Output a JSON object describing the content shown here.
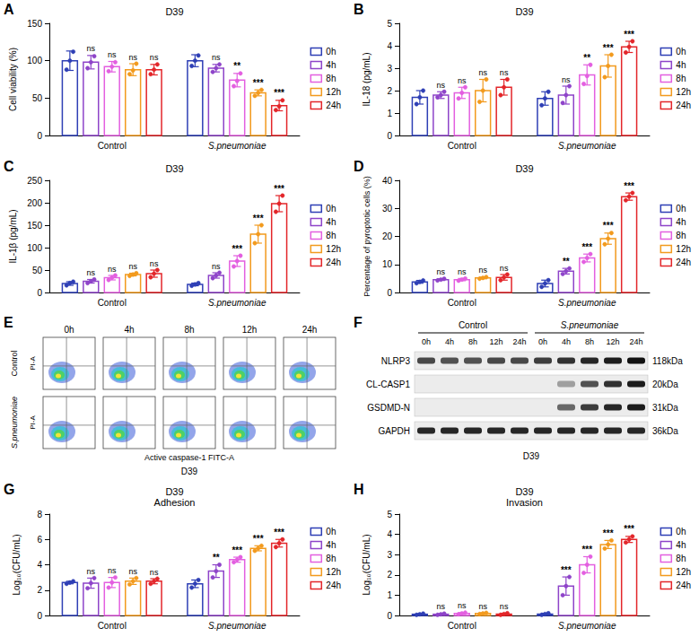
{
  "chart_data": [
    {
      "type": "bar",
      "panel": "A",
      "title": "D39",
      "y_label": "Cell viability (%)",
      "categories": [
        "Control",
        "S.pneumoniae"
      ],
      "ylim": [
        0,
        150
      ],
      "yticks": [
        0,
        50,
        100,
        150
      ],
      "grid": false,
      "legend": "right",
      "series": [
        {
          "name": "0h",
          "color": "#2e3fb5",
          "values": [
            100,
            100
          ],
          "errors": [
            13,
            8
          ],
          "points": [
            [
              88,
              100,
              112
            ],
            [
              93,
              100,
              107
            ]
          ],
          "significance": [
            null,
            null
          ]
        },
        {
          "name": "4h",
          "color": "#8e44c9",
          "values": [
            98,
            90
          ],
          "errors": [
            9,
            5
          ],
          "points": [
            [
              90,
              98,
              106
            ],
            [
              85,
              90,
              95
            ]
          ],
          "significance": [
            "ns",
            "ns"
          ]
        },
        {
          "name": "8h",
          "color": "#e35fe0",
          "values": [
            92,
            74
          ],
          "errors": [
            7,
            9
          ],
          "points": [
            [
              86,
              92,
              98
            ],
            [
              66,
              73,
              83
            ]
          ],
          "significance": [
            "ns",
            "**"
          ]
        },
        {
          "name": "12h",
          "color": "#f29a1e",
          "values": [
            88,
            57
          ],
          "errors": [
            8,
            4
          ],
          "points": [
            [
              82,
              87,
              96
            ],
            [
              53,
              57,
              61
            ]
          ],
          "significance": [
            "ns",
            "***"
          ]
        },
        {
          "name": "24h",
          "color": "#e3262a",
          "values": [
            88,
            40
          ],
          "errors": [
            7,
            7
          ],
          "points": [
            [
              82,
              88,
              95
            ],
            [
              34,
              39,
              47
            ]
          ],
          "significance": [
            "ns",
            "***"
          ]
        }
      ]
    },
    {
      "type": "bar",
      "panel": "B",
      "title": "D39",
      "y_label": "IL-18 (pg/mL)",
      "categories": [
        "Control",
        "S.pneumoniae"
      ],
      "ylim": [
        0,
        5
      ],
      "yticks": [
        0,
        1,
        2,
        3,
        4,
        5
      ],
      "grid": false,
      "legend": "right",
      "series": [
        {
          "name": "0h",
          "color": "#2e3fb5",
          "values": [
            1.7,
            1.65
          ],
          "errors": [
            0.3,
            0.3
          ],
          "points": [
            [
              1.4,
              1.7,
              2.0
            ],
            [
              1.35,
              1.65,
              1.95
            ]
          ],
          "significance": [
            null,
            null
          ]
        },
        {
          "name": "4h",
          "color": "#8e44c9",
          "values": [
            1.8,
            1.8
          ],
          "errors": [
            0.15,
            0.4
          ],
          "points": [
            [
              1.7,
              1.8,
              1.95
            ],
            [
              1.45,
              1.8,
              2.2
            ]
          ],
          "significance": [
            "ns",
            "ns"
          ]
        },
        {
          "name": "8h",
          "color": "#e35fe0",
          "values": [
            1.9,
            2.7
          ],
          "errors": [
            0.25,
            0.45
          ],
          "points": [
            [
              1.65,
              1.9,
              2.15
            ],
            [
              2.3,
              2.65,
              3.15
            ]
          ],
          "significance": [
            "ns",
            "**"
          ]
        },
        {
          "name": "12h",
          "color": "#f29a1e",
          "values": [
            2.0,
            3.1
          ],
          "errors": [
            0.5,
            0.5
          ],
          "points": [
            [
              1.5,
              2.0,
              2.5
            ],
            [
              2.6,
              3.1,
              3.6
            ]
          ],
          "significance": [
            "ns",
            "***"
          ]
        },
        {
          "name": "24h",
          "color": "#e3262a",
          "values": [
            2.15,
            3.95
          ],
          "errors": [
            0.35,
            0.25
          ],
          "points": [
            [
              1.8,
              2.15,
              2.5
            ],
            [
              3.7,
              3.95,
              4.2
            ]
          ],
          "significance": [
            "ns",
            "***"
          ]
        }
      ]
    },
    {
      "type": "bar",
      "panel": "C",
      "title": "D39",
      "y_label": "IL-1β (pg/mL)",
      "categories": [
        "Control",
        "S.pneumoniae"
      ],
      "ylim": [
        0,
        250
      ],
      "yticks": [
        0,
        50,
        100,
        150,
        200,
        250
      ],
      "grid": false,
      "legend": "right",
      "series": [
        {
          "name": "0h",
          "color": "#2e3fb5",
          "values": [
            20,
            18
          ],
          "errors": [
            4,
            3
          ],
          "points": [
            [
              16,
              21,
              24
            ],
            [
              15,
              18,
              21
            ]
          ],
          "significance": [
            null,
            null
          ]
        },
        {
          "name": "4h",
          "color": "#8e44c9",
          "values": [
            25,
            38
          ],
          "errors": [
            4,
            6
          ],
          "points": [
            [
              21,
              25,
              29
            ],
            [
              32,
              38,
              44
            ]
          ],
          "significance": [
            "ns",
            "ns"
          ]
        },
        {
          "name": "8h",
          "color": "#e35fe0",
          "values": [
            33,
            70
          ],
          "errors": [
            5,
            12
          ],
          "points": [
            [
              28,
              33,
              38
            ],
            [
              58,
              70,
              82
            ]
          ],
          "significance": [
            "ns",
            "***"
          ]
        },
        {
          "name": "12h",
          "color": "#f29a1e",
          "values": [
            40,
            130
          ],
          "errors": [
            3,
            20
          ],
          "points": [
            [
              37,
              40,
              43
            ],
            [
              110,
              130,
              150
            ]
          ],
          "significance": [
            "ns",
            "***"
          ]
        },
        {
          "name": "24h",
          "color": "#e3262a",
          "values": [
            42,
            198
          ],
          "errors": [
            8,
            18
          ],
          "points": [
            [
              34,
              42,
              50
            ],
            [
              180,
              198,
              216
            ]
          ],
          "significance": [
            "ns",
            "***"
          ]
        }
      ]
    },
    {
      "type": "bar",
      "panel": "D",
      "title": "D39",
      "y_label": "Percentage of pyroptotic cells (%)",
      "categories": [
        "Control",
        "S.pneumoniae"
      ],
      "ylim": [
        0,
        40
      ],
      "yticks": [
        0,
        10,
        20,
        30,
        40
      ],
      "grid": false,
      "legend": "right",
      "series": [
        {
          "name": "0h",
          "color": "#2e3fb5",
          "values": [
            3.8,
            3.2
          ],
          "errors": [
            0.5,
            1.2
          ],
          "points": [
            [
              3.3,
              3.8,
              4.3
            ],
            [
              2.0,
              3.2,
              4.4
            ]
          ],
          "significance": [
            null,
            null
          ]
        },
        {
          "name": "4h",
          "color": "#8e44c9",
          "values": [
            4.6,
            7.6
          ],
          "errors": [
            0.3,
            1.0
          ],
          "points": [
            [
              4.3,
              4.6,
              4.9
            ],
            [
              6.6,
              7.6,
              8.6
            ]
          ],
          "significance": [
            "ns",
            "**"
          ]
        },
        {
          "name": "8h",
          "color": "#e35fe0",
          "values": [
            4.6,
            12.3
          ],
          "errors": [
            0.4,
            1.4
          ],
          "points": [
            [
              4.2,
              4.6,
              5.0
            ],
            [
              10.9,
              12.3,
              13.7
            ]
          ],
          "significance": [
            "ns",
            "***"
          ]
        },
        {
          "name": "12h",
          "color": "#f29a1e",
          "values": [
            5.2,
            19.2
          ],
          "errors": [
            0.3,
            2.0
          ],
          "points": [
            [
              4.9,
              5.2,
              5.5
            ],
            [
              17.2,
              19.2,
              21.2
            ]
          ],
          "significance": [
            "ns",
            "***"
          ]
        },
        {
          "name": "24h",
          "color": "#e3262a",
          "values": [
            5.4,
            34.2
          ],
          "errors": [
            1.0,
            1.3
          ],
          "points": [
            [
              4.4,
              5.4,
              6.4
            ],
            [
              32.9,
              34.2,
              35.5
            ]
          ],
          "significance": [
            "ns",
            "***"
          ]
        }
      ]
    },
    {
      "type": "bar",
      "panel": "G",
      "title": "D39",
      "subtitle": "Adhesion",
      "y_label": "Log₁₀(CFU/mL)",
      "categories": [
        "Control",
        "S.pneumoniae"
      ],
      "ylim": [
        0,
        8
      ],
      "yticks": [
        0,
        2,
        4,
        6,
        8
      ],
      "grid": false,
      "legend": "right",
      "series": [
        {
          "name": "0h",
          "color": "#2e3fb5",
          "values": [
            2.6,
            2.5
          ],
          "errors": [
            0.1,
            0.3
          ],
          "points": [
            [
              2.5,
              2.6,
              2.7
            ],
            [
              2.2,
              2.5,
              2.8
            ]
          ],
          "significance": [
            null,
            null
          ]
        },
        {
          "name": "4h",
          "color": "#8e44c9",
          "values": [
            2.55,
            3.5
          ],
          "errors": [
            0.4,
            0.5
          ],
          "points": [
            [
              2.15,
              2.55,
              2.95
            ],
            [
              3.0,
              3.5,
              4.0
            ]
          ],
          "significance": [
            "ns",
            "**"
          ]
        },
        {
          "name": "8h",
          "color": "#e35fe0",
          "values": [
            2.6,
            4.4
          ],
          "errors": [
            0.4,
            0.2
          ],
          "points": [
            [
              2.2,
              2.6,
              3.0
            ],
            [
              4.2,
              4.4,
              4.6
            ]
          ],
          "significance": [
            "ns",
            "***"
          ]
        },
        {
          "name": "12h",
          "color": "#f29a1e",
          "values": [
            2.7,
            5.3
          ],
          "errors": [
            0.25,
            0.2
          ],
          "points": [
            [
              2.45,
              2.7,
              2.95
            ],
            [
              5.1,
              5.3,
              5.5
            ]
          ],
          "significance": [
            "ns",
            "***"
          ]
        },
        {
          "name": "24h",
          "color": "#e3262a",
          "values": [
            2.7,
            5.7
          ],
          "errors": [
            0.2,
            0.3
          ],
          "points": [
            [
              2.5,
              2.7,
              2.9
            ],
            [
              5.4,
              5.7,
              6.0
            ]
          ],
          "significance": [
            "ns",
            "***"
          ]
        }
      ]
    },
    {
      "type": "bar",
      "panel": "H",
      "title": "D39",
      "subtitle": "Invasion",
      "y_label": "Log₁₀(CFU/mL)",
      "categories": [
        "Control",
        "S.pneumoniae"
      ],
      "ylim": [
        0,
        5
      ],
      "yticks": [
        0,
        1,
        2,
        3,
        4,
        5
      ],
      "grid": false,
      "legend": "right",
      "series": [
        {
          "name": "0h",
          "color": "#2e3fb5",
          "values": [
            0.06,
            0.07
          ],
          "errors": [
            0.03,
            0.04
          ],
          "points": [
            [
              0.03,
              0.06,
              0.09
            ],
            [
              0.03,
              0.07,
              0.11
            ]
          ],
          "significance": [
            null,
            null
          ]
        },
        {
          "name": "4h",
          "color": "#8e44c9",
          "values": [
            0.06,
            1.45
          ],
          "errors": [
            0.03,
            0.45
          ],
          "points": [
            [
              0.03,
              0.06,
              0.09
            ],
            [
              1.0,
              1.45,
              1.9
            ]
          ],
          "significance": [
            "ns",
            "***"
          ]
        },
        {
          "name": "8h",
          "color": "#e35fe0",
          "values": [
            0.1,
            2.5
          ],
          "errors": [
            0.04,
            0.4
          ],
          "points": [
            [
              0.06,
              0.1,
              0.14
            ],
            [
              2.1,
              2.5,
              2.9
            ]
          ],
          "significance": [
            "ns",
            "***"
          ]
        },
        {
          "name": "12h",
          "color": "#f29a1e",
          "values": [
            0.1,
            3.5
          ],
          "errors": [
            0.03,
            0.2
          ],
          "points": [
            [
              0.07,
              0.1,
              0.13
            ],
            [
              3.3,
              3.5,
              3.7
            ]
          ],
          "significance": [
            "ns",
            "***"
          ]
        },
        {
          "name": "24h",
          "color": "#e3262a",
          "values": [
            0.07,
            3.75
          ],
          "errors": [
            0.04,
            0.15
          ],
          "points": [
            [
              0.03,
              0.07,
              0.11
            ],
            [
              3.6,
              3.75,
              3.9
            ]
          ],
          "significance": [
            "ns",
            "***"
          ]
        }
      ]
    }
  ],
  "flow_cytometry": {
    "panel": "E",
    "title": "D39",
    "columns": [
      "0h",
      "4h",
      "8h",
      "12h",
      "24h"
    ],
    "rows": [
      "Control",
      "S.pneumoniae"
    ],
    "x_label": "Active caspase-1 FITC-A",
    "y_label": "PI-A"
  },
  "western_blot": {
    "panel": "F",
    "title": "D39",
    "groups": [
      {
        "name": "Control",
        "lanes": [
          "0h",
          "4h",
          "8h",
          "12h",
          "24h"
        ]
      },
      {
        "name": "S.pneumoniae",
        "lanes": [
          "0h",
          "4h",
          "8h",
          "12h",
          "24h"
        ]
      }
    ],
    "bands": [
      {
        "name": "NLRP3",
        "size": "118kDa",
        "intensity": [
          0.75,
          0.7,
          0.7,
          0.75,
          0.75,
          0.8,
          0.85,
          0.9,
          0.95,
          1.0
        ]
      },
      {
        "name": "CL-CASP1",
        "size": "20kDa",
        "intensity": [
          0,
          0,
          0,
          0,
          0,
          0,
          0.35,
          0.7,
          0.85,
          0.95
        ]
      },
      {
        "name": "GSDMD-N",
        "size": "31kDa",
        "intensity": [
          0,
          0,
          0,
          0,
          0,
          0,
          0.6,
          0.8,
          0.9,
          0.95
        ]
      },
      {
        "name": "GAPDH",
        "size": "36kDa",
        "intensity": [
          0.9,
          0.9,
          0.9,
          0.9,
          0.9,
          0.9,
          0.9,
          0.9,
          0.9,
          0.9
        ]
      }
    ]
  }
}
